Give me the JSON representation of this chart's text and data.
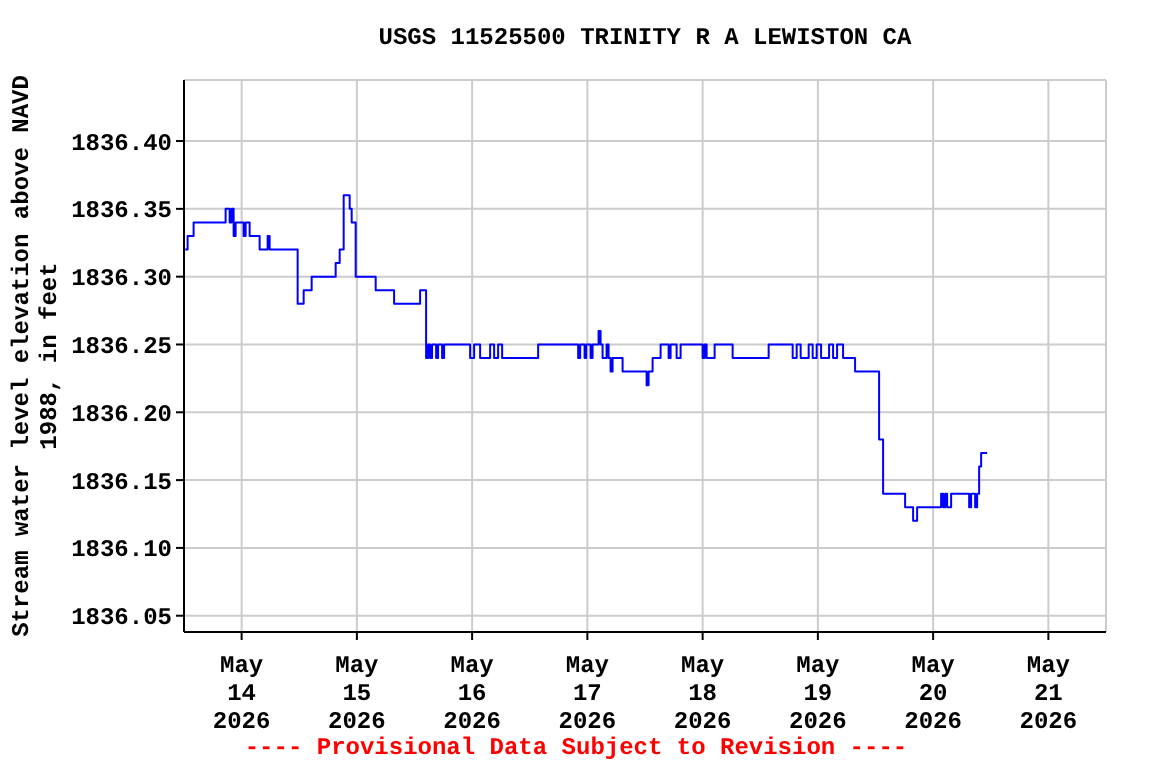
{
  "chart_data": {
    "type": "step",
    "title": "USGS 11525500 TRINITY R A LEWISTON CA",
    "ylabel": "Stream water level elevation above NAVD\n1988, in feet",
    "annotations": [
      "---- Provisional Data Subject to Revision ----"
    ],
    "x": [
      "2026-05-13T12:15",
      "2026-05-13T12:45",
      "2026-05-13T14:00",
      "2026-05-13T20:40",
      "2026-05-13T21:30",
      "2026-05-13T21:55",
      "2026-05-13T22:20",
      "2026-05-13T22:45",
      "2026-05-14T00:25",
      "2026-05-14T00:50",
      "2026-05-14T01:40",
      "2026-05-14T03:45",
      "2026-05-14T05:25",
      "2026-05-14T05:50",
      "2026-05-14T11:40",
      "2026-05-14T12:55",
      "2026-05-14T14:35",
      "2026-05-14T19:35",
      "2026-05-14T20:25",
      "2026-05-14T21:15",
      "2026-05-14T22:30",
      "2026-05-14T22:55",
      "2026-05-14T23:45",
      "2026-05-15T03:55",
      "2026-05-15T07:45",
      "2026-05-15T13:10",
      "2026-05-15T14:25",
      "2026-05-15T14:50",
      "2026-05-15T15:15",
      "2026-05-15T15:40",
      "2026-05-15T16:30",
      "2026-05-15T16:55",
      "2026-05-15T17:45",
      "2026-05-15T18:10",
      "2026-05-15T23:35",
      "2026-05-16T00:25",
      "2026-05-16T01:40",
      "2026-05-16T03:45",
      "2026-05-16T04:35",
      "2026-05-16T05:25",
      "2026-05-16T06:15",
      "2026-05-16T13:45",
      "2026-05-16T22:05",
      "2026-05-16T22:30",
      "2026-05-16T23:25",
      "2026-05-16T23:45",
      "2026-05-17T00:40",
      "2026-05-17T01:05",
      "2026-05-17T02:20",
      "2026-05-17T02:45",
      "2026-05-17T03:10",
      "2026-05-17T04:00",
      "2026-05-17T04:25",
      "2026-05-17T04:50",
      "2026-05-17T05:15",
      "2026-05-17T07:20",
      "2026-05-17T12:20",
      "2026-05-17T12:45",
      "2026-05-17T13:35",
      "2026-05-17T15:15",
      "2026-05-17T16:55",
      "2026-05-17T17:20",
      "2026-05-17T18:35",
      "2026-05-17T19:25",
      "2026-05-18T00:00",
      "2026-05-18T00:25",
      "2026-05-18T00:50",
      "2026-05-18T02:30",
      "2026-05-18T06:15",
      "2026-05-18T13:45",
      "2026-05-18T18:45",
      "2026-05-18T19:35",
      "2026-05-18T20:25",
      "2026-05-18T22:05",
      "2026-05-18T22:55",
      "2026-05-18T23:45",
      "2026-05-19T00:40",
      "2026-05-19T02:20",
      "2026-05-19T03:10",
      "2026-05-19T04:00",
      "2026-05-19T05:15",
      "2026-05-19T07:45",
      "2026-05-19T12:45",
      "2026-05-19T13:35",
      "2026-05-19T18:10",
      "2026-05-19T19:50",
      "2026-05-19T20:40",
      "2026-05-20T01:40",
      "2026-05-20T02:05",
      "2026-05-20T02:30",
      "2026-05-20T02:55",
      "2026-05-20T03:45",
      "2026-05-20T07:30",
      "2026-05-20T07:55",
      "2026-05-20T08:45",
      "2026-05-20T09:10",
      "2026-05-20T09:35",
      "2026-05-20T10:00",
      "2026-05-20T11:15"
    ],
    "series": [
      {
        "color": "#0000ff",
        "values": [
          1836.32,
          1836.33,
          1836.34,
          1836.35,
          1836.34,
          1836.35,
          1836.33,
          1836.34,
          1836.33,
          1836.34,
          1836.33,
          1836.32,
          1836.33,
          1836.32,
          1836.28,
          1836.29,
          1836.3,
          1836.31,
          1836.32,
          1836.36,
          1836.35,
          1836.34,
          1836.3,
          1836.29,
          1836.28,
          1836.29,
          1836.24,
          1836.25,
          1836.24,
          1836.25,
          1836.24,
          1836.25,
          1836.24,
          1836.25,
          1836.24,
          1836.25,
          1836.24,
          1836.25,
          1836.24,
          1836.25,
          1836.24,
          1836.25,
          1836.24,
          1836.25,
          1836.24,
          1836.25,
          1836.24,
          1836.25,
          1836.26,
          1836.25,
          1836.24,
          1836.25,
          1836.24,
          1836.23,
          1836.24,
          1836.23,
          1836.22,
          1836.23,
          1836.24,
          1836.25,
          1836.24,
          1836.25,
          1836.24,
          1836.25,
          1836.24,
          1836.25,
          1836.24,
          1836.25,
          1836.24,
          1836.25,
          1836.24,
          1836.25,
          1836.24,
          1836.25,
          1836.24,
          1836.25,
          1836.24,
          1836.25,
          1836.24,
          1836.25,
          1836.24,
          1836.23,
          1836.18,
          1836.14,
          1836.13,
          1836.12,
          1836.13,
          1836.14,
          1836.13,
          1836.14,
          1836.13,
          1836.14,
          1836.13,
          1836.14,
          1836.13,
          1836.14,
          1836.16,
          1836.17,
          1836.17
        ]
      }
    ],
    "xlim": [
      "2026-05-13T12:00",
      "2026-05-21T12:00"
    ],
    "xticks": [
      {
        "value": "2026-05-14",
        "label": "May\n14\n2026"
      },
      {
        "value": "2026-05-15",
        "label": "May\n15\n2026"
      },
      {
        "value": "2026-05-16",
        "label": "May\n16\n2026"
      },
      {
        "value": "2026-05-17",
        "label": "May\n17\n2026"
      },
      {
        "value": "2026-05-18",
        "label": "May\n18\n2026"
      },
      {
        "value": "2026-05-19",
        "label": "May\n19\n2026"
      },
      {
        "value": "2026-05-20",
        "label": "May\n20\n2026"
      },
      {
        "value": "2026-05-21",
        "label": "May\n21\n2026"
      }
    ],
    "ylim": [
      1836.038,
      1836.445
    ],
    "yticks": [
      {
        "value": 1836.05,
        "label": "1836.05"
      },
      {
        "value": 1836.1,
        "label": "1836.10"
      },
      {
        "value": 1836.15,
        "label": "1836.15"
      },
      {
        "value": 1836.2,
        "label": "1836.20"
      },
      {
        "value": 1836.25,
        "label": "1836.25"
      },
      {
        "value": 1836.3,
        "label": "1836.30"
      },
      {
        "value": 1836.35,
        "label": "1836.35"
      },
      {
        "value": 1836.4,
        "label": "1836.40"
      }
    ],
    "grid": true,
    "legend": false,
    "marker": "none",
    "line_style": "solid"
  }
}
